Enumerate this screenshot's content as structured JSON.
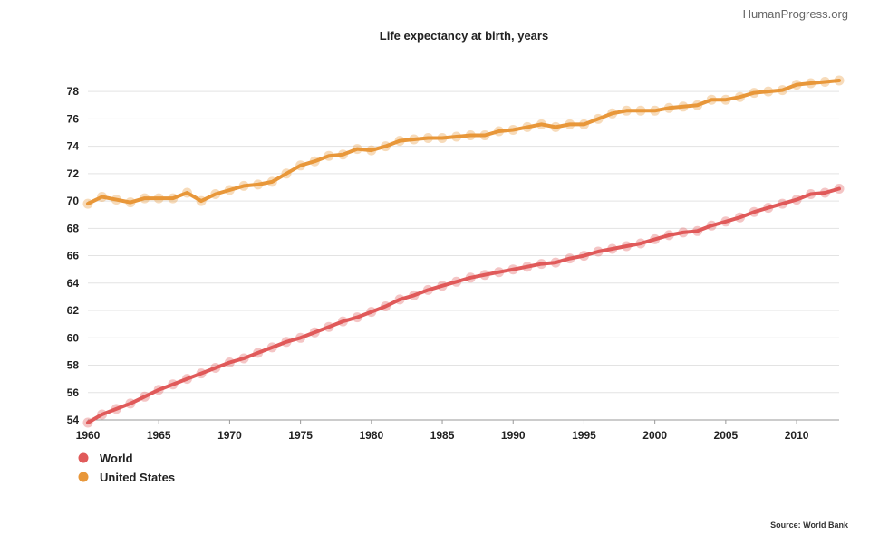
{
  "watermark": "HumanProgress.org",
  "source": "Source: World Bank",
  "chart_data": {
    "type": "line",
    "title": "Life expectancy at birth, years",
    "xlabel": "",
    "ylabel": "",
    "xlim": [
      1960,
      2013
    ],
    "ylim": [
      54,
      79
    ],
    "x_ticks": [
      "1960",
      "1965",
      "1970",
      "1975",
      "1980",
      "1985",
      "1990",
      "1995",
      "2000",
      "2005",
      "2010"
    ],
    "y_ticks": [
      "54",
      "56",
      "58",
      "60",
      "62",
      "64",
      "66",
      "68",
      "70",
      "72",
      "74",
      "76",
      "78"
    ],
    "grid": true,
    "legend_position": "bottom-left",
    "x": [
      1960,
      1961,
      1962,
      1963,
      1964,
      1965,
      1966,
      1967,
      1968,
      1969,
      1970,
      1971,
      1972,
      1973,
      1974,
      1975,
      1976,
      1977,
      1978,
      1979,
      1980,
      1981,
      1982,
      1983,
      1984,
      1985,
      1986,
      1987,
      1988,
      1989,
      1990,
      1991,
      1992,
      1993,
      1994,
      1995,
      1996,
      1997,
      1998,
      1999,
      2000,
      2001,
      2002,
      2003,
      2004,
      2005,
      2006,
      2007,
      2008,
      2009,
      2010,
      2011,
      2012,
      2013
    ],
    "series": [
      {
        "name": "World",
        "color": "#e05a5a",
        "values": [
          53.8,
          54.4,
          54.8,
          55.2,
          55.7,
          56.2,
          56.6,
          57.0,
          57.4,
          57.8,
          58.2,
          58.5,
          58.9,
          59.3,
          59.7,
          60.0,
          60.4,
          60.8,
          61.2,
          61.5,
          61.9,
          62.3,
          62.8,
          63.1,
          63.5,
          63.8,
          64.1,
          64.4,
          64.6,
          64.8,
          65.0,
          65.2,
          65.4,
          65.5,
          65.8,
          66.0,
          66.3,
          66.5,
          66.7,
          66.9,
          67.2,
          67.5,
          67.7,
          67.8,
          68.2,
          68.5,
          68.8,
          69.2,
          69.5,
          69.8,
          70.1,
          70.5,
          70.6,
          70.9
        ]
      },
      {
        "name": "United States",
        "color": "#e8973a",
        "values": [
          69.8,
          70.3,
          70.1,
          69.9,
          70.2,
          70.2,
          70.2,
          70.6,
          70.0,
          70.5,
          70.8,
          71.1,
          71.2,
          71.4,
          72.0,
          72.6,
          72.9,
          73.3,
          73.4,
          73.8,
          73.7,
          74.0,
          74.4,
          74.5,
          74.6,
          74.6,
          74.7,
          74.8,
          74.8,
          75.1,
          75.2,
          75.4,
          75.6,
          75.4,
          75.6,
          75.6,
          76.0,
          76.4,
          76.6,
          76.6,
          76.6,
          76.8,
          76.9,
          77.0,
          77.4,
          77.4,
          77.6,
          77.9,
          78.0,
          78.1,
          78.5,
          78.6,
          78.7,
          78.8
        ]
      }
    ]
  }
}
